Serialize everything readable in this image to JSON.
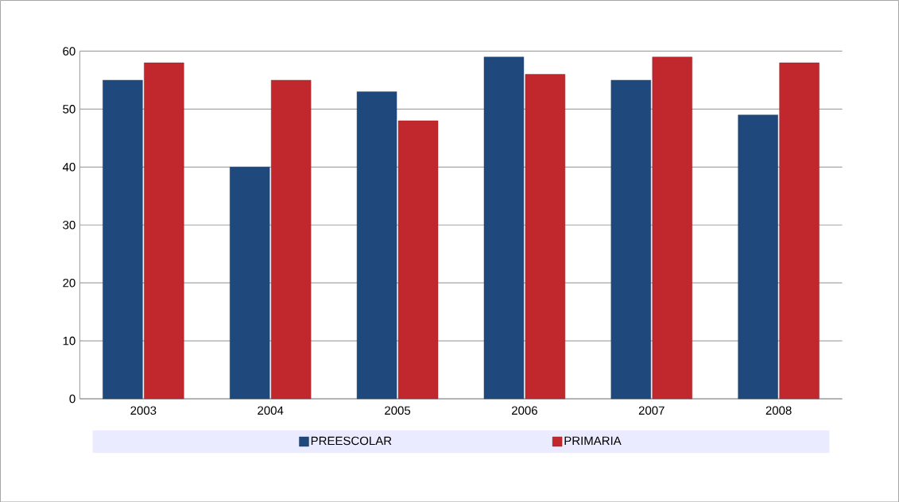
{
  "chart_data": {
    "type": "bar",
    "categories": [
      "2003",
      "2004",
      "2005",
      "2006",
      "2007",
      "2008"
    ],
    "series": [
      {
        "name": "PREESCOLAR",
        "color": "#1f497d",
        "values": [
          55,
          40,
          53,
          59,
          55,
          49
        ]
      },
      {
        "name": "PRIMARIA",
        "color": "#c0282d",
        "values": [
          58,
          55,
          48,
          56,
          59,
          58
        ]
      }
    ],
    "ylim": [
      0,
      60
    ],
    "yticks": [
      0,
      10,
      20,
      30,
      40,
      50,
      60
    ],
    "grid": "y",
    "legend": "bottom"
  }
}
